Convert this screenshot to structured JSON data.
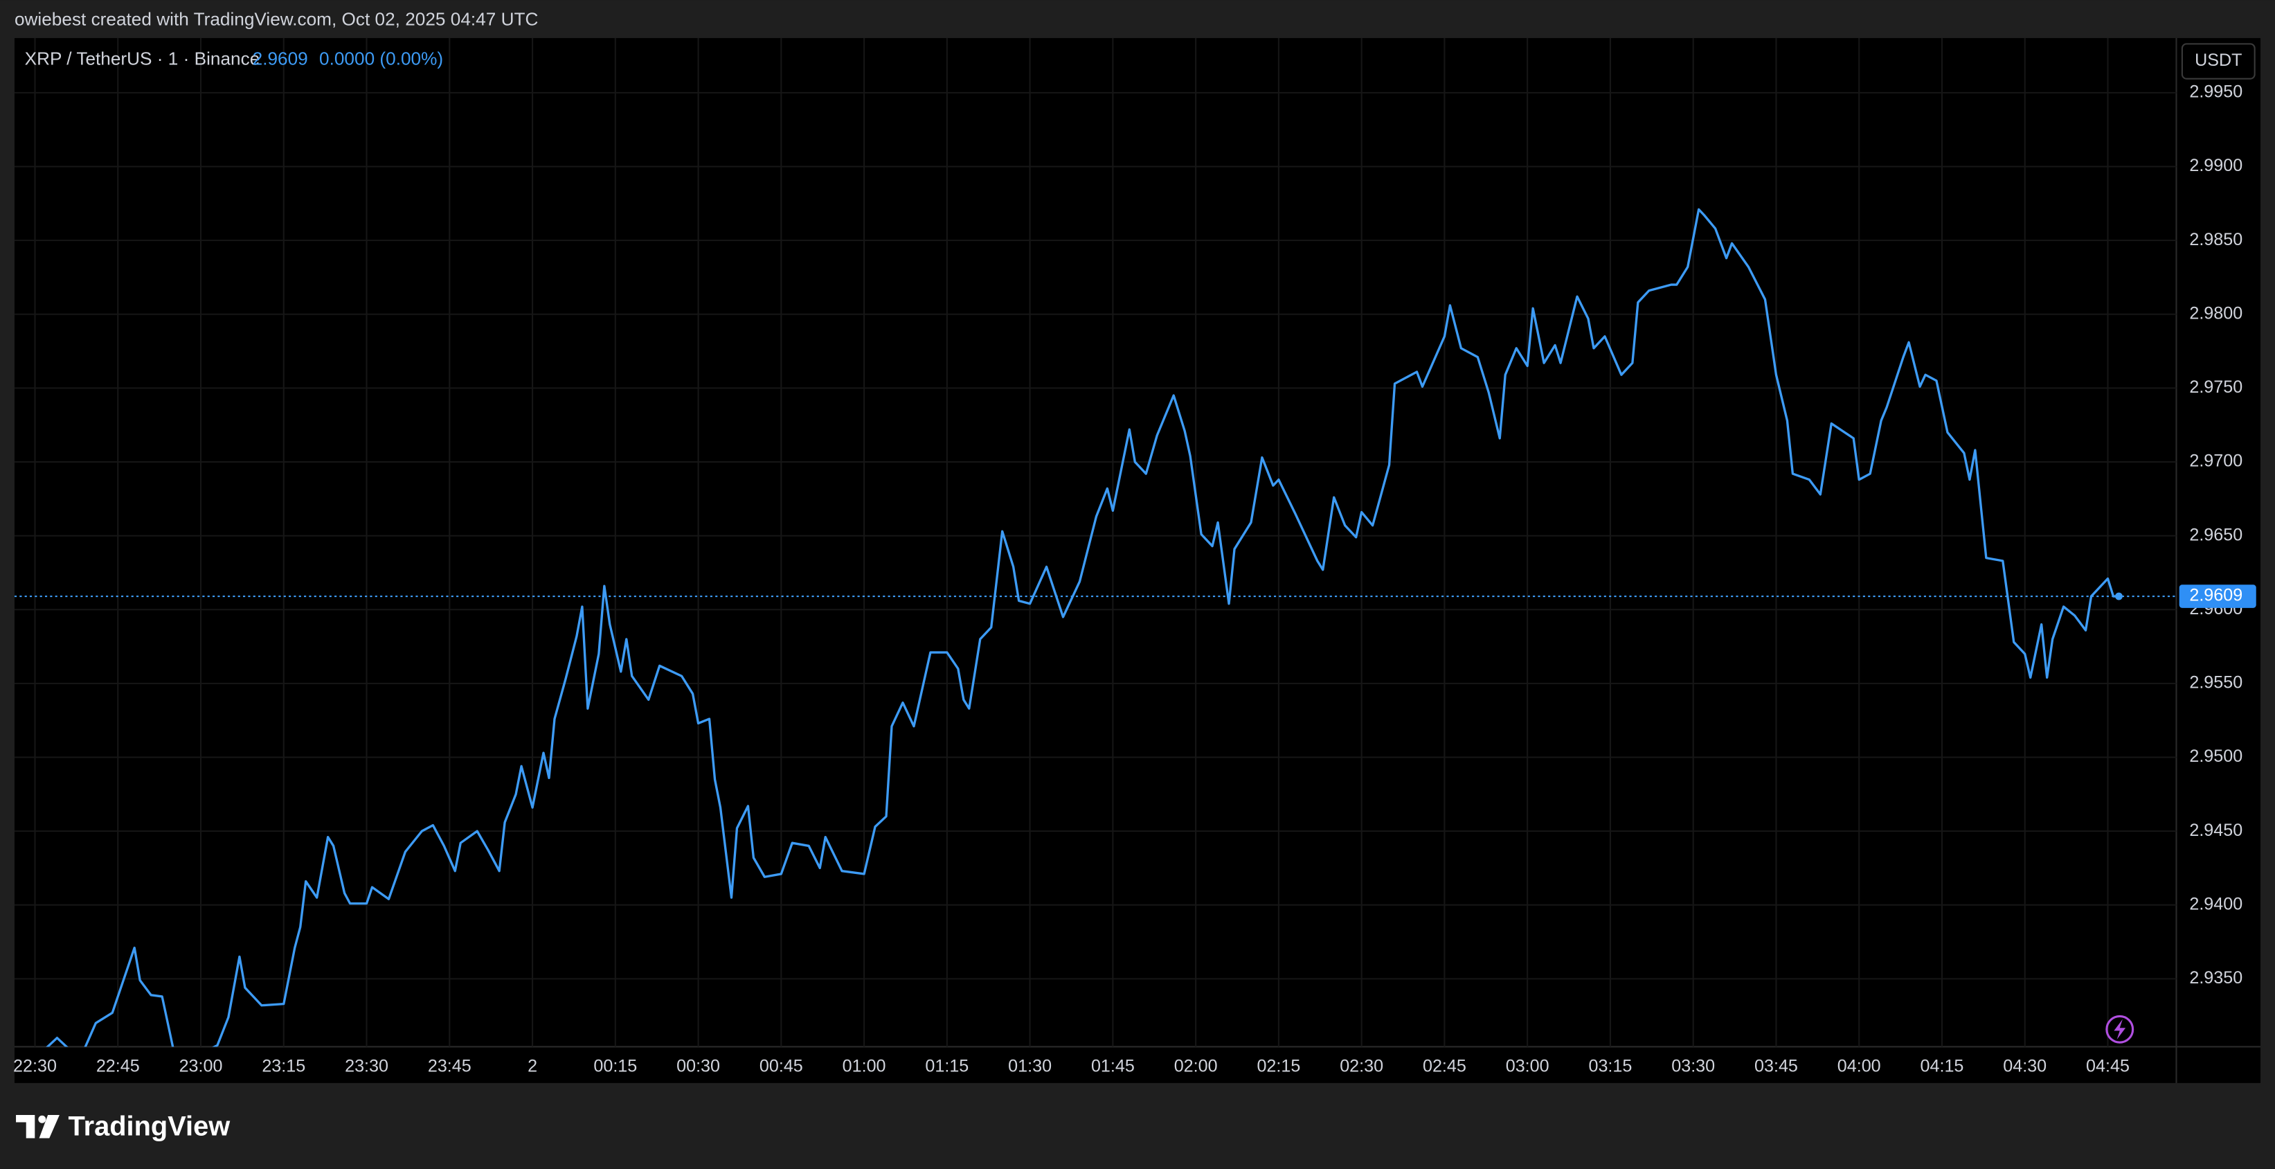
{
  "header": "owiebest created with TradingView.com, Oct 02, 2025 04:47 UTC",
  "brand": "TradingView",
  "chart_data": {
    "type": "line",
    "title": "XRP / TetherUS · 1 · Binance",
    "price": "2.9609",
    "change": "0.0000 (0.00%)",
    "currency": "USDT",
    "grid": true,
    "xlim": [
      -3.7,
      387.4
    ],
    "ylim": [
      2.9304,
      2.9987
    ],
    "xticks": [
      {
        "value": 0,
        "label": "22:30"
      },
      {
        "value": 15,
        "label": "22:45"
      },
      {
        "value": 30,
        "label": "23:00"
      },
      {
        "value": 45,
        "label": "23:15"
      },
      {
        "value": 60,
        "label": "23:30"
      },
      {
        "value": 75,
        "label": "23:45"
      },
      {
        "value": 90,
        "label": "2"
      },
      {
        "value": 105,
        "label": "00:15"
      },
      {
        "value": 120,
        "label": "00:30"
      },
      {
        "value": 135,
        "label": "00:45"
      },
      {
        "value": 150,
        "label": "01:00"
      },
      {
        "value": 165,
        "label": "01:15"
      },
      {
        "value": 180,
        "label": "01:30"
      },
      {
        "value": 195,
        "label": "01:45"
      },
      {
        "value": 210,
        "label": "02:00"
      },
      {
        "value": 225,
        "label": "02:15"
      },
      {
        "value": 240,
        "label": "02:30"
      },
      {
        "value": 255,
        "label": "02:45"
      },
      {
        "value": 270,
        "label": "03:00"
      },
      {
        "value": 285,
        "label": "03:15"
      },
      {
        "value": 300,
        "label": "03:30"
      },
      {
        "value": 315,
        "label": "03:45"
      },
      {
        "value": 330,
        "label": "04:00"
      },
      {
        "value": 345,
        "label": "04:15"
      },
      {
        "value": 360,
        "label": "04:30"
      },
      {
        "value": 375,
        "label": "04:45"
      }
    ],
    "yticks": [
      {
        "value": 2.935,
        "label": "2.9350"
      },
      {
        "value": 2.94,
        "label": "2.9400"
      },
      {
        "value": 2.945,
        "label": "2.9450"
      },
      {
        "value": 2.95,
        "label": "2.9500"
      },
      {
        "value": 2.955,
        "label": "2.9550"
      },
      {
        "value": 2.96,
        "label": "2.9600"
      },
      {
        "value": 2.965,
        "label": "2.9650"
      },
      {
        "value": 2.97,
        "label": "2.9700"
      },
      {
        "value": 2.975,
        "label": "2.9750"
      },
      {
        "value": 2.98,
        "label": "2.9800"
      },
      {
        "value": 2.985,
        "label": "2.9850"
      },
      {
        "value": 2.99,
        "label": "2.9900"
      },
      {
        "value": 2.995,
        "label": "2.9950"
      }
    ],
    "series": [
      {
        "name": "XRP / TetherUS",
        "color": "#3d9bf5",
        "x": [
          2,
          4,
          6,
          9,
          11,
          14,
          16,
          18,
          19,
          21,
          23,
          25,
          29,
          33,
          35,
          37,
          38,
          41,
          45,
          47,
          48,
          49,
          51,
          53,
          54,
          56,
          57,
          60,
          61,
          64,
          67,
          70,
          72,
          74,
          76,
          77,
          80,
          82,
          84,
          85,
          87,
          88,
          90,
          92,
          93,
          94,
          96,
          98,
          99,
          100,
          102,
          103,
          104,
          106,
          107,
          108,
          111,
          113,
          117,
          119,
          120,
          122,
          123,
          124,
          126,
          127,
          129,
          130,
          132,
          135,
          137,
          140,
          142,
          143,
          146,
          150,
          152,
          154,
          155,
          157,
          159,
          162,
          165,
          167,
          168,
          169,
          171,
          173,
          175,
          177,
          178,
          180,
          183,
          186,
          189,
          192,
          194,
          195,
          198,
          199,
          201,
          203,
          206,
          208,
          209,
          211,
          213,
          214,
          216,
          217,
          220,
          222,
          224,
          225,
          228,
          232,
          233,
          235,
          237,
          239,
          240,
          242,
          245,
          246,
          250,
          251,
          255,
          256,
          258,
          261,
          263,
          265,
          266,
          268,
          270,
          271,
          273,
          275,
          276,
          279,
          281,
          282,
          284,
          287,
          289,
          290,
          292,
          296,
          297,
          299,
          301,
          302,
          304,
          306,
          307,
          310,
          313,
          315,
          317,
          318,
          321,
          323,
          325,
          329,
          330,
          332,
          334,
          335,
          338,
          339,
          341,
          342,
          344,
          346,
          349,
          350,
          351,
          353,
          356,
          358,
          360,
          361,
          363,
          364,
          365,
          367,
          369,
          371,
          372,
          374,
          375,
          376,
          377
        ],
        "values": [
          2.9303,
          2.931,
          2.9303,
          2.9303,
          2.932,
          2.9327,
          2.9349,
          2.9371,
          2.9349,
          2.9339,
          2.9338,
          2.9303,
          2.9297,
          2.9305,
          2.9324,
          2.9365,
          2.9344,
          2.9332,
          2.9333,
          2.9371,
          2.9385,
          2.9416,
          2.9405,
          2.9446,
          2.944,
          2.9408,
          2.9401,
          2.9401,
          2.9412,
          2.9404,
          2.9436,
          2.945,
          2.9454,
          2.944,
          2.9423,
          2.9442,
          2.945,
          2.9437,
          2.9423,
          2.9456,
          2.9475,
          2.9494,
          2.9466,
          2.9503,
          2.9486,
          2.9526,
          2.9553,
          2.9582,
          2.9602,
          2.9533,
          2.957,
          2.9616,
          2.959,
          2.9558,
          2.958,
          2.9555,
          2.9539,
          2.9562,
          2.9555,
          2.9543,
          2.9523,
          2.9526,
          2.9485,
          2.9466,
          2.9405,
          2.9452,
          2.9467,
          2.9432,
          2.9419,
          2.9421,
          2.9442,
          2.944,
          2.9425,
          2.9446,
          2.9423,
          2.9421,
          2.9453,
          2.946,
          2.9521,
          2.9537,
          2.9521,
          2.9571,
          2.9571,
          2.956,
          2.9539,
          2.9533,
          2.958,
          2.9588,
          2.9653,
          2.9629,
          2.9606,
          2.9604,
          2.9629,
          2.9595,
          2.9619,
          2.9663,
          2.9682,
          2.9667,
          2.9722,
          2.97,
          2.9692,
          2.9718,
          2.9745,
          2.9721,
          2.9704,
          2.9651,
          2.9643,
          2.9659,
          2.9604,
          2.9641,
          2.9659,
          2.9703,
          2.9684,
          2.9688,
          2.9665,
          2.9633,
          2.9627,
          2.9676,
          2.9657,
          2.9649,
          2.9666,
          2.9657,
          2.9698,
          2.9753,
          2.9761,
          2.9751,
          2.9785,
          2.9806,
          2.9777,
          2.9771,
          2.9747,
          2.9716,
          2.9759,
          2.9777,
          2.9765,
          2.9804,
          2.9767,
          2.9779,
          2.9767,
          2.9812,
          2.9797,
          2.9777,
          2.9785,
          2.9759,
          2.9767,
          2.9808,
          2.9816,
          2.982,
          2.982,
          2.9832,
          2.9871,
          2.9867,
          2.9858,
          2.9838,
          2.9848,
          2.9832,
          2.981,
          2.9759,
          2.9728,
          2.9692,
          2.9688,
          2.9678,
          2.9726,
          2.9716,
          2.9688,
          2.9692,
          2.9728,
          2.9737,
          2.9771,
          2.9781,
          2.9751,
          2.9759,
          2.9755,
          2.972,
          2.9706,
          2.9688,
          2.9708,
          2.9635,
          2.9633,
          2.9578,
          2.957,
          2.9554,
          2.959,
          2.9554,
          2.958,
          2.9602,
          2.9596,
          2.9586,
          2.9609,
          2.9617,
          2.9621,
          2.9609,
          2.9609
        ]
      }
    ]
  }
}
